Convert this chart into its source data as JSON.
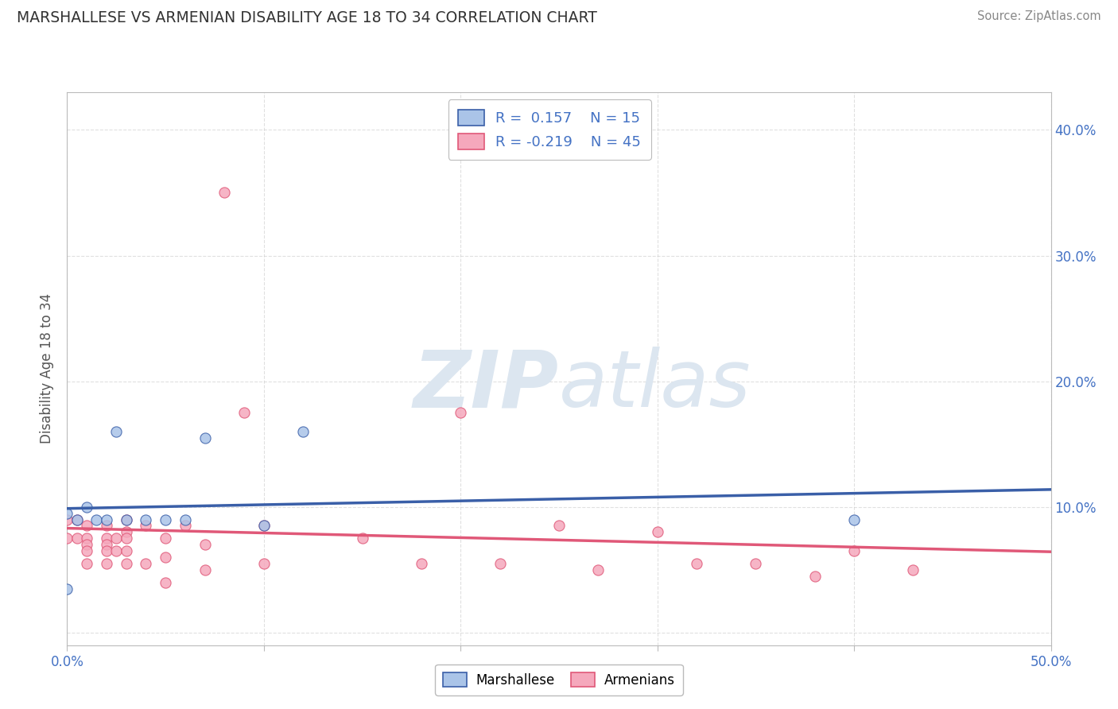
{
  "title": "MARSHALLESE VS ARMENIAN DISABILITY AGE 18 TO 34 CORRELATION CHART",
  "source": "Source: ZipAtlas.com",
  "ylabel": "Disability Age 18 to 34",
  "xlim": [
    0.0,
    0.5
  ],
  "ylim": [
    -0.01,
    0.43
  ],
  "r_marshallese": 0.157,
  "n_marshallese": 15,
  "r_armenian": -0.219,
  "n_armenian": 45,
  "color_marshallese": "#aac4e8",
  "color_armenian": "#f5a8bc",
  "line_color_marshallese": "#3a5fa8",
  "line_color_armenian": "#e05878",
  "watermark_text": "ZIPatlas",
  "watermark_color": "#dce6f0",
  "background_color": "#ffffff",
  "grid_color": "#cccccc",
  "marshallese_x": [
    0.0,
    0.005,
    0.01,
    0.015,
    0.02,
    0.025,
    0.03,
    0.04,
    0.05,
    0.06,
    0.07,
    0.1,
    0.12,
    0.4,
    0.0
  ],
  "marshallese_y": [
    0.095,
    0.09,
    0.1,
    0.09,
    0.09,
    0.16,
    0.09,
    0.09,
    0.09,
    0.09,
    0.155,
    0.085,
    0.16,
    0.09,
    0.035
  ],
  "armenian_x": [
    0.0,
    0.0,
    0.005,
    0.005,
    0.01,
    0.01,
    0.01,
    0.01,
    0.01,
    0.02,
    0.02,
    0.02,
    0.02,
    0.02,
    0.025,
    0.025,
    0.03,
    0.03,
    0.03,
    0.03,
    0.03,
    0.04,
    0.04,
    0.05,
    0.05,
    0.05,
    0.06,
    0.07,
    0.07,
    0.08,
    0.09,
    0.1,
    0.1,
    0.15,
    0.18,
    0.2,
    0.22,
    0.25,
    0.27,
    0.3,
    0.32,
    0.35,
    0.38,
    0.4,
    0.43
  ],
  "armenian_y": [
    0.09,
    0.075,
    0.09,
    0.075,
    0.085,
    0.075,
    0.07,
    0.065,
    0.055,
    0.085,
    0.075,
    0.07,
    0.065,
    0.055,
    0.075,
    0.065,
    0.09,
    0.08,
    0.075,
    0.065,
    0.055,
    0.085,
    0.055,
    0.075,
    0.06,
    0.04,
    0.085,
    0.07,
    0.05,
    0.35,
    0.175,
    0.085,
    0.055,
    0.075,
    0.055,
    0.175,
    0.055,
    0.085,
    0.05,
    0.08,
    0.055,
    0.055,
    0.045,
    0.065,
    0.05
  ]
}
